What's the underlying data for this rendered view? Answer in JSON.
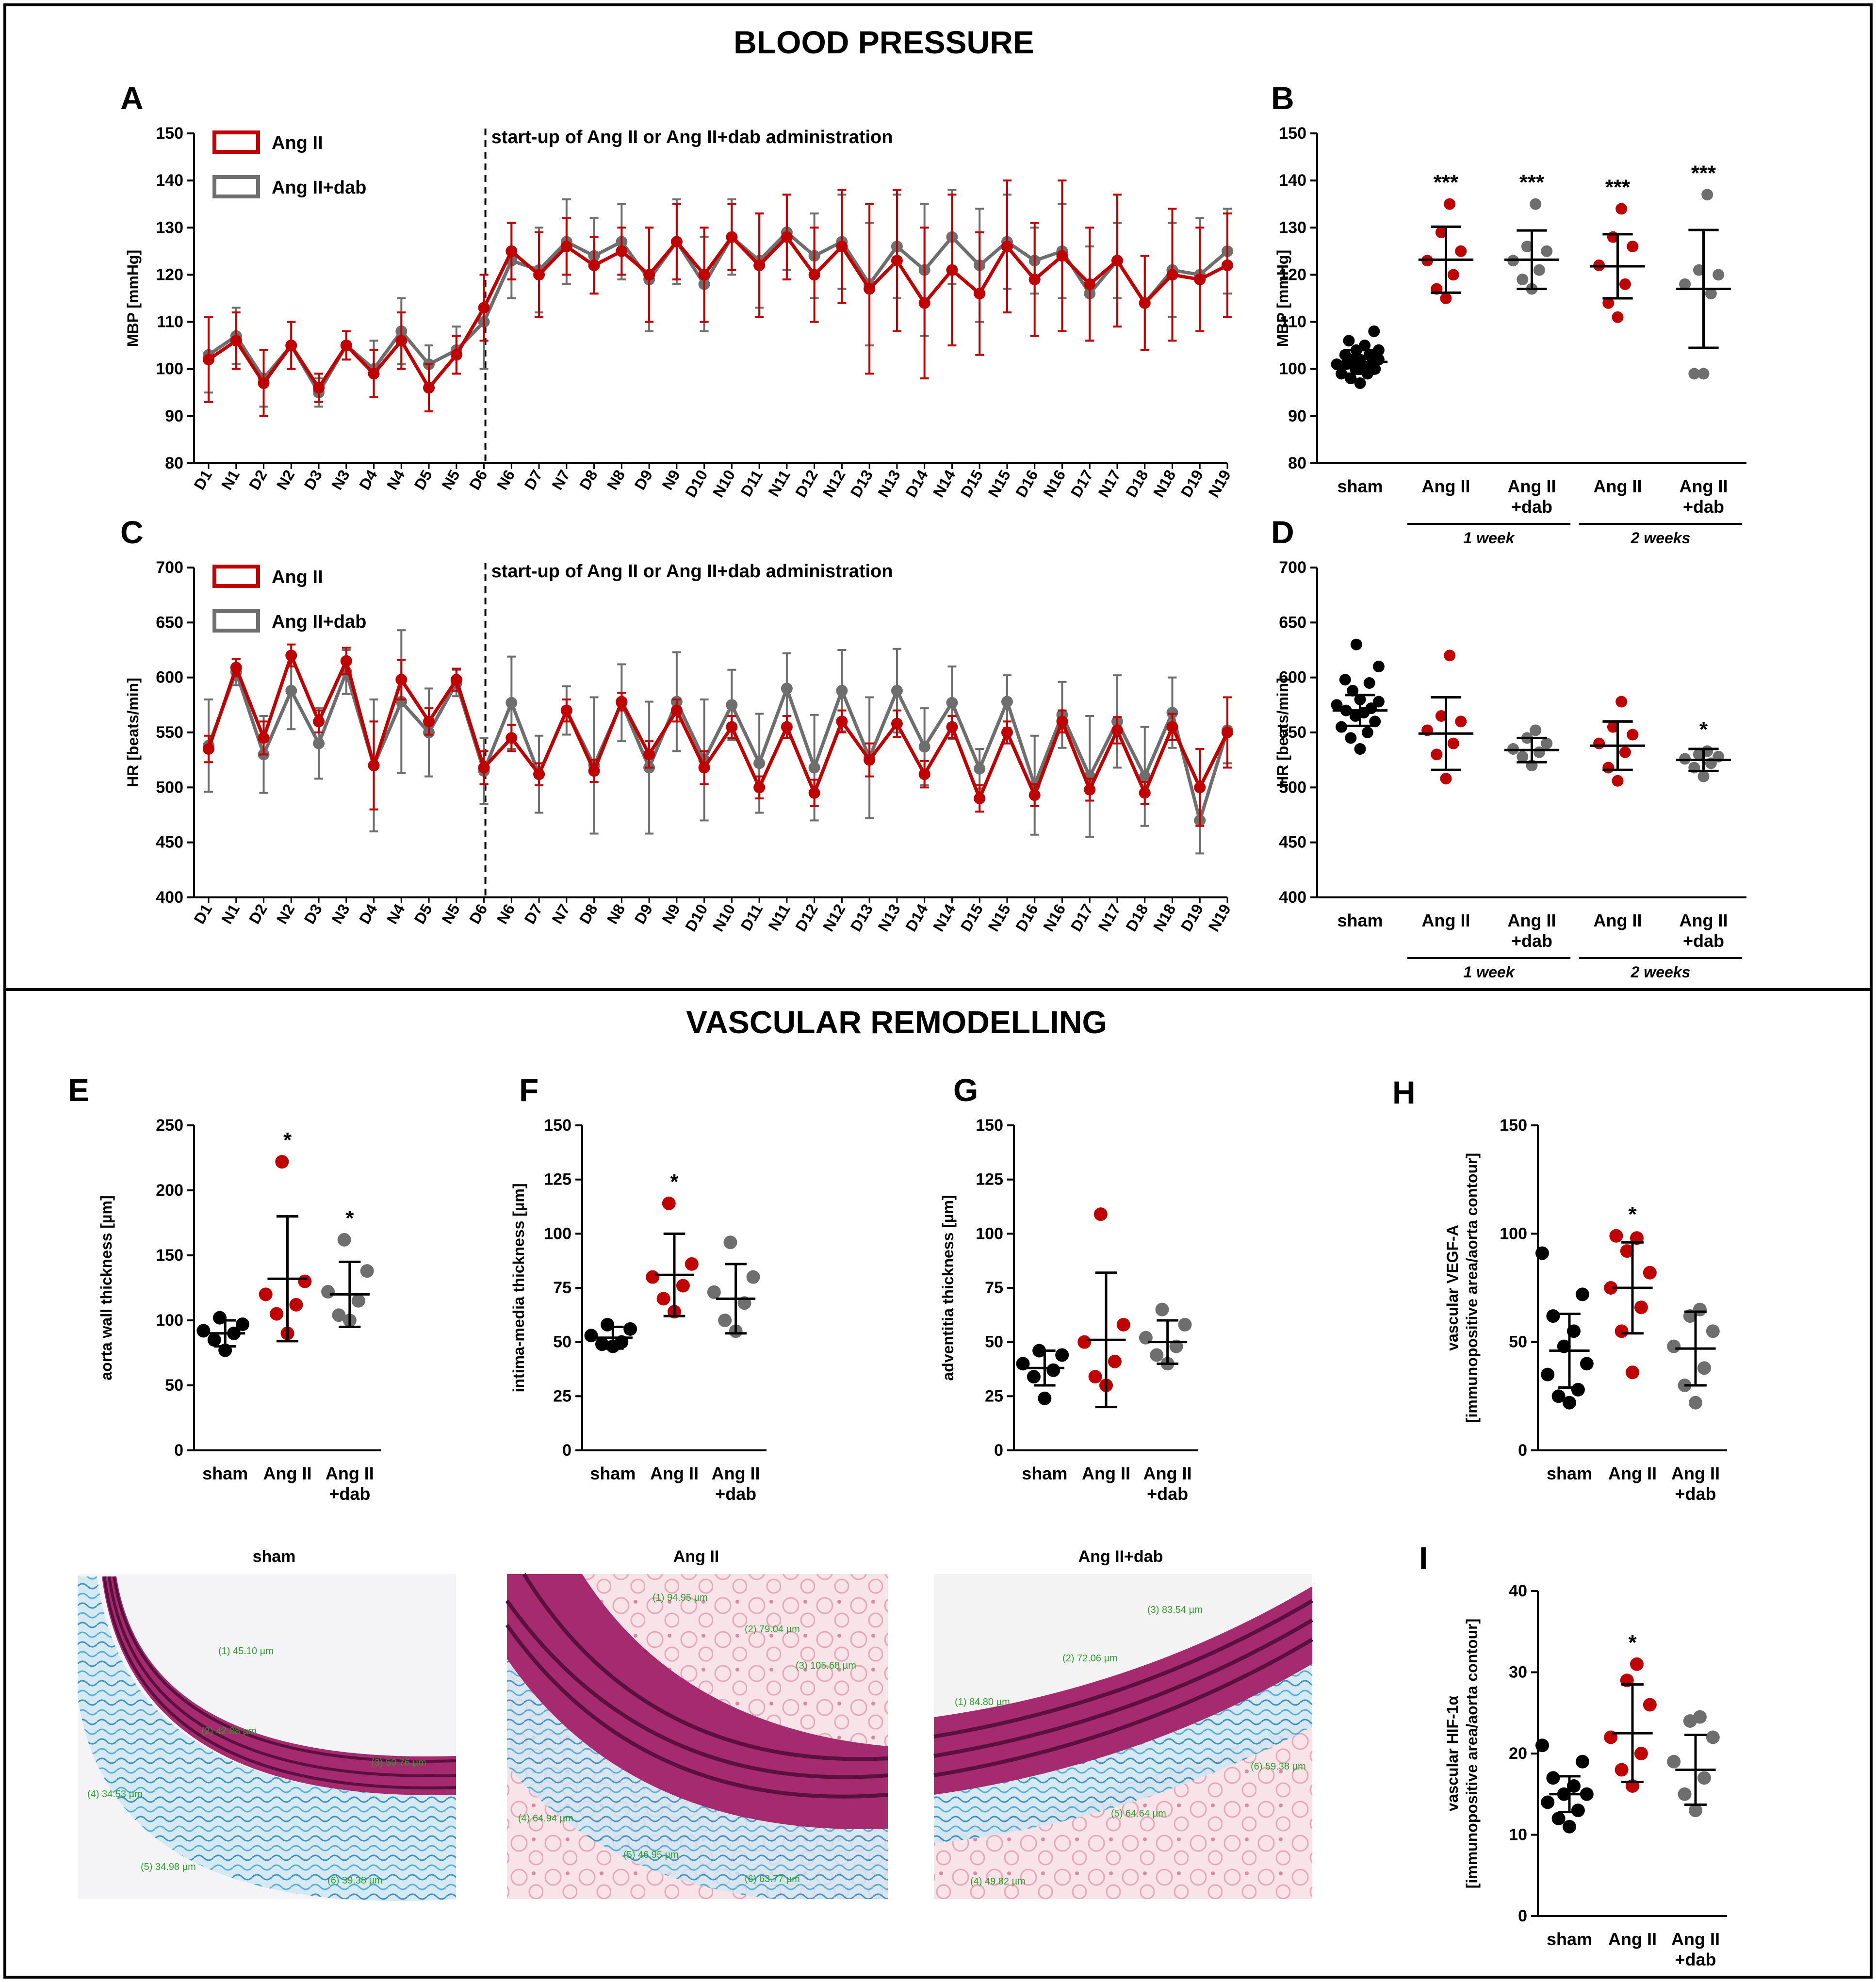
{
  "sections": {
    "top_title": "BLOOD PRESSURE",
    "bottom_title": "VASCULAR REMODELLING"
  },
  "colors": {
    "red": "#c00000",
    "gray": "#6e6e6e",
    "black": "#000000"
  },
  "chart_data": [
    {
      "id": "A",
      "type": "line",
      "panel_letter": "A",
      "ylabel": "MBP [mmHg]",
      "ylim": [
        80,
        150
      ],
      "yticks": [
        80,
        90,
        100,
        110,
        120,
        130,
        140,
        150
      ],
      "annotation": "start-up of Ang II or Ang II+dab administration",
      "annotation_after_index": 10,
      "categories": [
        "D1",
        "N1",
        "D2",
        "N2",
        "D3",
        "N3",
        "D4",
        "N4",
        "D5",
        "N5",
        "D6",
        "N6",
        "D7",
        "N7",
        "D8",
        "N8",
        "D9",
        "N9",
        "D10",
        "N10",
        "D11",
        "N11",
        "D12",
        "N12",
        "D13",
        "N13",
        "D14",
        "N14",
        "D15",
        "N15",
        "D16",
        "N16",
        "D17",
        "N17",
        "D18",
        "N18",
        "D19",
        "N19"
      ],
      "series": [
        {
          "name": "Ang II",
          "color": "red",
          "values": [
            102,
            106,
            97,
            105,
            96,
            105,
            99,
            106,
            96,
            103,
            113,
            125,
            120,
            126,
            122,
            125,
            120,
            127,
            120,
            128,
            122,
            128,
            120,
            126,
            117,
            123,
            114,
            121,
            116,
            126,
            119,
            124,
            118,
            123,
            114,
            120,
            119,
            122
          ],
          "errors": [
            9,
            6,
            7,
            5,
            3,
            3,
            5,
            6,
            5,
            4,
            7,
            6,
            9,
            6,
            6,
            5,
            10,
            8,
            10,
            7,
            11,
            9,
            10,
            12,
            18,
            15,
            16,
            16,
            13,
            14,
            12,
            16,
            12,
            14,
            10,
            14,
            11,
            11
          ]
        },
        {
          "name": "Ang II+dab",
          "color": "gray",
          "values": [
            103,
            107,
            98,
            105,
            95,
            105,
            100,
            108,
            101,
            104,
            110,
            123,
            121,
            127,
            124,
            127,
            119,
            127,
            118,
            128,
            123,
            129,
            124,
            127,
            118,
            126,
            121,
            128,
            122,
            127,
            123,
            125,
            116,
            123,
            114,
            121,
            120,
            125
          ],
          "errors": [
            8,
            6,
            6,
            5,
            3,
            3,
            6,
            7,
            4,
            5,
            10,
            8,
            9,
            9,
            8,
            8,
            11,
            9,
            10,
            8,
            10,
            8,
            9,
            10,
            13,
            11,
            14,
            10,
            12,
            10,
            7,
            10,
            10,
            8,
            10,
            10,
            12,
            9
          ]
        }
      ],
      "legend": [
        "Ang II",
        "Ang II+dab"
      ]
    },
    {
      "id": "B",
      "type": "scatter",
      "panel_letter": "B",
      "ylabel": "MBP [mmHg]",
      "ylim": [
        80,
        150
      ],
      "yticks": [
        80,
        90,
        100,
        110,
        120,
        130,
        140,
        150
      ],
      "groups": [
        {
          "label1": "sham",
          "label2": "",
          "color": "black",
          "mean": 101.5,
          "sd": 2.5,
          "points": [
            97,
            98,
            99,
            99,
            100,
            100,
            100,
            101,
            101,
            101,
            102,
            102,
            102,
            103,
            103,
            104,
            104,
            105,
            106,
            108
          ],
          "sig": ""
        },
        {
          "label1": "Ang II",
          "label2": "",
          "color": "red",
          "mean": 123.2,
          "sd": 7,
          "points": [
            115,
            117,
            120,
            123,
            125,
            129,
            135
          ],
          "sig": "***"
        },
        {
          "label1": "Ang II",
          "label2": "+dab",
          "color": "gray",
          "mean": 123.2,
          "sd": 6.2,
          "points": [
            117,
            119,
            121,
            123,
            125,
            126,
            135
          ],
          "sig": "***"
        },
        {
          "label1": "Ang II",
          "label2": "",
          "color": "red",
          "mean": 121.8,
          "sd": 6.8,
          "points": [
            111,
            114,
            118,
            122,
            126,
            128,
            134
          ],
          "sig": "***"
        },
        {
          "label1": "Ang II",
          "label2": "+dab",
          "color": "gray",
          "mean": 117,
          "sd": 12.5,
          "points": [
            99,
            99,
            116,
            118,
            120,
            121,
            137
          ],
          "sig": "***"
        }
      ],
      "brackets": [
        {
          "text": "1 week",
          "from": 1,
          "to": 2
        },
        {
          "text": "2 weeks",
          "from": 3,
          "to": 4
        }
      ]
    },
    {
      "id": "C",
      "type": "line",
      "panel_letter": "C",
      "ylabel": "HR [beats/min]",
      "ylim": [
        400,
        700
      ],
      "yticks": [
        400,
        450,
        500,
        550,
        600,
        650,
        700
      ],
      "annotation": "start-up of Ang II or Ang II+dab administration",
      "annotation_after_index": 10,
      "categories": [
        "D1",
        "N1",
        "D2",
        "N2",
        "D3",
        "N3",
        "D4",
        "N4",
        "D5",
        "N5",
        "D6",
        "N6",
        "D7",
        "N7",
        "D8",
        "N8",
        "D9",
        "N9",
        "D10",
        "N10",
        "D11",
        "N11",
        "D12",
        "N12",
        "D13",
        "N13",
        "D14",
        "N14",
        "D15",
        "N15",
        "D16",
        "N16",
        "D17",
        "N17",
        "D18",
        "N18",
        "D19",
        "N19"
      ],
      "series": [
        {
          "name": "Ang II",
          "color": "red",
          "values": [
            535,
            609,
            545,
            620,
            560,
            615,
            520,
            598,
            560,
            598,
            518,
            545,
            512,
            570,
            515,
            578,
            530,
            570,
            518,
            555,
            500,
            555,
            495,
            560,
            525,
            558,
            512,
            555,
            490,
            550,
            493,
            560,
            498,
            552,
            495,
            555,
            500,
            550
          ],
          "errors": [
            12,
            8,
            15,
            10,
            10,
            12,
            40,
            18,
            12,
            10,
            15,
            12,
            10,
            10,
            10,
            8,
            12,
            10,
            15,
            10,
            10,
            10,
            12,
            10,
            15,
            12,
            12,
            10,
            12,
            10,
            10,
            10,
            10,
            12,
            10,
            12,
            35,
            32
          ]
        },
        {
          "name": "Ang II+dab",
          "color": "gray",
          "values": [
            538,
            605,
            530,
            588,
            540,
            605,
            520,
            578,
            550,
            595,
            515,
            577,
            512,
            570,
            520,
            577,
            518,
            578,
            525,
            575,
            522,
            590,
            518,
            588,
            527,
            588,
            537,
            577,
            517,
            578,
            502,
            566,
            510,
            560,
            510,
            568,
            470,
            552
          ],
          "errors": [
            42,
            12,
            35,
            35,
            32,
            20,
            60,
            65,
            40,
            12,
            30,
            42,
            35,
            22,
            62,
            35,
            60,
            45,
            55,
            32,
            45,
            32,
            48,
            37,
            55,
            38,
            35,
            33,
            18,
            24,
            45,
            30,
            55,
            42,
            45,
            32,
            30,
            30
          ]
        }
      ],
      "legend": [
        "Ang II",
        "Ang II+dab"
      ]
    },
    {
      "id": "D",
      "type": "scatter",
      "panel_letter": "D",
      "ylabel": "HR [beats/min]",
      "ylim": [
        400,
        700
      ],
      "yticks": [
        400,
        450,
        500,
        550,
        600,
        650,
        700
      ],
      "groups": [
        {
          "label1": "sham",
          "label2": "",
          "color": "black",
          "mean": 570,
          "sd": 14,
          "points": [
            535,
            545,
            550,
            555,
            560,
            565,
            568,
            570,
            572,
            575,
            578,
            580,
            588,
            595,
            598,
            610,
            630
          ],
          "sig": ""
        },
        {
          "label1": "Ang II",
          "label2": "",
          "color": "red",
          "mean": 549,
          "sd": 33,
          "points": [
            508,
            530,
            540,
            552,
            560,
            565,
            620
          ],
          "sig": ""
        },
        {
          "label1": "Ang II",
          "label2": "+dab",
          "color": "gray",
          "mean": 534,
          "sd": 11,
          "points": [
            520,
            528,
            532,
            535,
            540,
            545,
            552
          ],
          "sig": ""
        },
        {
          "label1": "Ang II",
          "label2": "",
          "color": "red",
          "mean": 538,
          "sd": 22,
          "points": [
            506,
            518,
            532,
            540,
            548,
            555,
            578
          ],
          "sig": ""
        },
        {
          "label1": "Ang II",
          "label2": "+dab",
          "color": "gray",
          "mean": 525,
          "sd": 10,
          "points": [
            510,
            518,
            522,
            526,
            528,
            530,
            533
          ],
          "sig": "*"
        }
      ],
      "brackets": [
        {
          "text": "1 week",
          "from": 1,
          "to": 2
        },
        {
          "text": "2 weeks",
          "from": 3,
          "to": 4
        }
      ]
    },
    {
      "id": "E",
      "type": "scatter",
      "panel_letter": "E",
      "ylabel": "aorta wall thickness [µm]",
      "ylim": [
        0,
        250
      ],
      "yticks": [
        0,
        50,
        100,
        150,
        200,
        250
      ],
      "groups": [
        {
          "label1": "sham",
          "label2": "",
          "color": "black",
          "mean": 90,
          "sd": 10,
          "points": [
            77,
            85,
            90,
            92,
            97,
            102
          ],
          "sig": ""
        },
        {
          "label1": "Ang II",
          "label2": "",
          "color": "red",
          "mean": 132,
          "sd": 48,
          "points": [
            90,
            105,
            112,
            120,
            130,
            222
          ],
          "sig": "*"
        },
        {
          "label1": "Ang II",
          "label2": "+dab",
          "color": "gray",
          "mean": 120,
          "sd": 25,
          "points": [
            100,
            104,
            115,
            122,
            138,
            162
          ],
          "sig": "*"
        }
      ]
    },
    {
      "id": "F",
      "type": "scatter",
      "panel_letter": "F",
      "ylabel": "intima-media thickness [µm]",
      "ylim": [
        0,
        150
      ],
      "yticks": [
        0,
        25,
        50,
        75,
        100,
        125,
        150
      ],
      "groups": [
        {
          "label1": "sham",
          "label2": "",
          "color": "black",
          "mean": 52,
          "sd": 5,
          "points": [
            48,
            49,
            50,
            53,
            56,
            58
          ],
          "sig": ""
        },
        {
          "label1": "Ang II",
          "label2": "",
          "color": "red",
          "mean": 81,
          "sd": 19,
          "points": [
            64,
            70,
            76,
            80,
            86,
            114
          ],
          "sig": "*"
        },
        {
          "label1": "Ang II",
          "label2": "+dab",
          "color": "gray",
          "mean": 70,
          "sd": 16,
          "points": [
            55,
            60,
            68,
            73,
            80,
            96
          ],
          "sig": ""
        }
      ]
    },
    {
      "id": "G",
      "type": "scatter",
      "panel_letter": "G",
      "ylabel": "adventitia thickness [µm]",
      "ylim": [
        0,
        150
      ],
      "yticks": [
        0,
        25,
        50,
        75,
        100,
        125,
        150
      ],
      "groups": [
        {
          "label1": "sham",
          "label2": "",
          "color": "black",
          "mean": 38,
          "sd": 8,
          "points": [
            24,
            34,
            37,
            40,
            44,
            46
          ],
          "sig": ""
        },
        {
          "label1": "Ang II",
          "label2": "",
          "color": "red",
          "mean": 51,
          "sd": 31,
          "points": [
            30,
            34,
            41,
            50,
            58,
            109
          ],
          "sig": ""
        },
        {
          "label1": "Ang II",
          "label2": "+dab",
          "color": "gray",
          "mean": 50,
          "sd": 10,
          "points": [
            40,
            44,
            48,
            52,
            58,
            65
          ],
          "sig": ""
        }
      ]
    },
    {
      "id": "H",
      "type": "scatter",
      "panel_letter": "H",
      "ylabel": "vascular VEGF-A",
      "ylabel2": "[immunopositive area/aorta contour]",
      "ylim": [
        0,
        150
      ],
      "yticks": [
        0,
        50,
        100,
        150
      ],
      "groups": [
        {
          "label1": "sham",
          "label2": "",
          "color": "black",
          "mean": 46,
          "sd": 17,
          "points": [
            22,
            25,
            28,
            35,
            40,
            48,
            55,
            62,
            72,
            91
          ],
          "sig": ""
        },
        {
          "label1": "Ang II",
          "label2": "",
          "color": "red",
          "mean": 75,
          "sd": 21,
          "points": [
            36,
            55,
            66,
            75,
            82,
            92,
            98,
            99
          ],
          "sig": "*"
        },
        {
          "label1": "Ang II",
          "label2": "+dab",
          "color": "gray",
          "mean": 47,
          "sd": 17,
          "points": [
            22,
            30,
            38,
            48,
            55,
            62,
            65
          ],
          "sig": ""
        }
      ]
    },
    {
      "id": "I",
      "type": "scatter",
      "panel_letter": "I",
      "ylabel": "vascular HIF-1α",
      "ylabel2": "[immunopositive area/aorta contour]",
      "ylim": [
        0,
        40
      ],
      "yticks": [
        0,
        10,
        20,
        30,
        40
      ],
      "groups": [
        {
          "label1": "sham",
          "label2": "",
          "color": "black",
          "mean": 15,
          "sd": 2.2,
          "points": [
            11,
            12,
            13,
            14,
            15,
            15,
            16,
            17,
            19,
            21
          ],
          "sig": ""
        },
        {
          "label1": "Ang II",
          "label2": "",
          "color": "red",
          "mean": 22.5,
          "sd": 6,
          "points": [
            16,
            18,
            20,
            22,
            26,
            29,
            31
          ],
          "sig": "*"
        },
        {
          "label1": "Ang II",
          "label2": "+dab",
          "color": "gray",
          "mean": 18,
          "sd": 4.3,
          "points": [
            13,
            15,
            17,
            19,
            22,
            24,
            24.5
          ],
          "sig": ""
        }
      ]
    }
  ],
  "micrographs": [
    {
      "title": "sham",
      "measurements": [
        "(1) 45.10 µm",
        "(2) 42.88 µm",
        "(3) 50.76 µm",
        "(4) 34.53 µm",
        "(5) 34.98 µm",
        "(6) 39.38 µm"
      ]
    },
    {
      "title": "Ang II",
      "measurements": [
        "(1) 94.95 µm",
        "(2) 79.04 µm",
        "(3) 105.68 µm",
        "(4) 64.94 µm",
        "(5) 46.95 µm",
        "(6) 63.77 µm"
      ]
    },
    {
      "title": "Ang II+dab",
      "measurements": [
        "(3) 83.54 µm",
        "(2) 72.06 µm",
        "(1) 84.80 µm",
        "(6) 59.38 µm",
        "(5) 64.64 µm",
        "(4) 49.82 µm"
      ]
    }
  ]
}
